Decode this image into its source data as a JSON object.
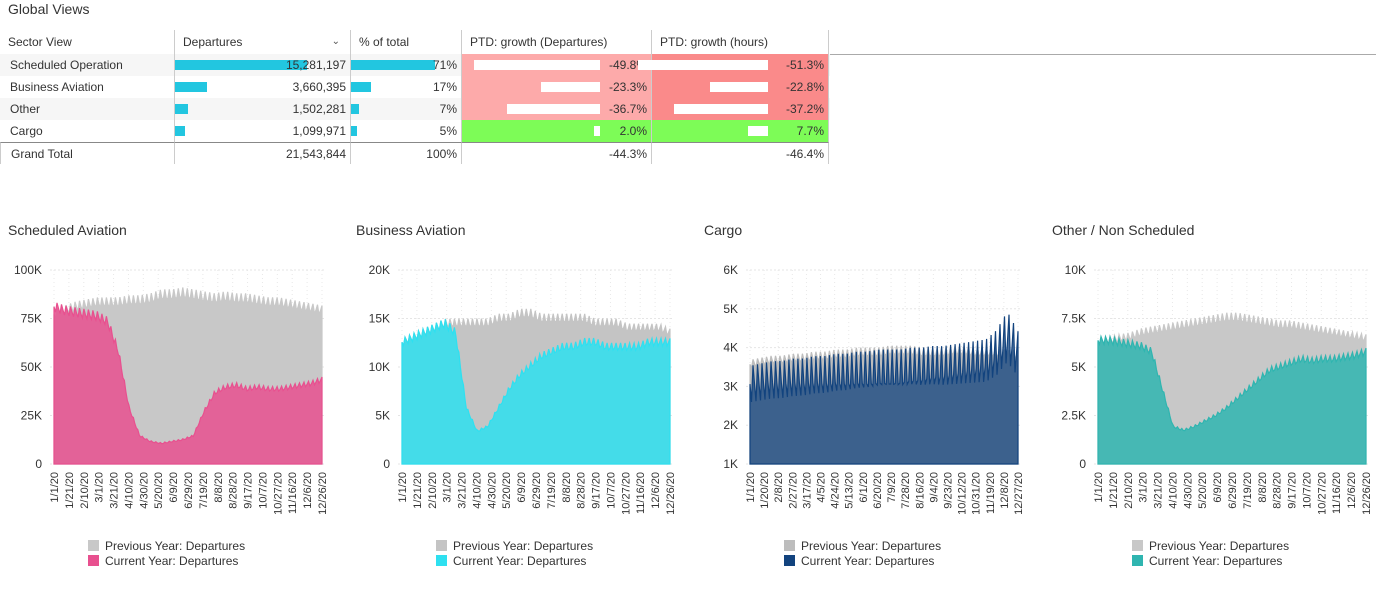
{
  "page": {
    "title": "Global Views"
  },
  "table": {
    "headers": {
      "sector": "Sector View",
      "departures": "Departures",
      "pct_total": "% of total",
      "ptd_dep": "PTD: growth (Departures)",
      "ptd_hours": "PTD: growth (hours)"
    },
    "rows": [
      {
        "sector": "Scheduled Operation",
        "departures": "15,281,197",
        "pct": "71%",
        "g_dep": "-49.8%",
        "g_hours": "-51.3%"
      },
      {
        "sector": "Business Aviation",
        "departures": "3,660,395",
        "pct": "17%",
        "g_dep": "-23.3%",
        "g_hours": "-22.8%"
      },
      {
        "sector": "Other",
        "departures": "1,502,281",
        "pct": "7%",
        "g_dep": "-36.7%",
        "g_hours": "-37.2%"
      },
      {
        "sector": "Cargo",
        "departures": "1,099,971",
        "pct": "5%",
        "g_dep": "2.0%",
        "g_hours": "7.7%"
      }
    ],
    "grand_total": {
      "sector": "Grand Total",
      "departures": "21,543,844",
      "pct": "100%",
      "g_dep": "-44.3%",
      "g_hours": "-46.4%"
    },
    "bar_values": {
      "departures": [
        15281197,
        3660395,
        1502281,
        1099971
      ],
      "pct": [
        0.71,
        0.17,
        0.07,
        0.05
      ],
      "g_dep": [
        -49.8,
        -23.3,
        -36.7,
        2.0
      ],
      "g_hours": [
        -51.3,
        -22.8,
        -37.2,
        7.7
      ]
    },
    "colors": {
      "bar": "#22c6e0",
      "neg_light": "#fba3a3",
      "neg_dark": "#f98080",
      "pos": "#7dfc57"
    }
  },
  "chart_data": [
    {
      "type": "area",
      "title": "Scheduled Aviation",
      "y_ticks": [
        "100K",
        "75K",
        "50K",
        "25K",
        "0"
      ],
      "ylim": [
        0,
        100000
      ],
      "x_ticks": [
        "1/1/20",
        "1/21/20",
        "2/10/20",
        "3/1/20",
        "3/21/20",
        "4/10/20",
        "4/30/20",
        "5/20/20",
        "6/9/20",
        "6/29/20",
        "7/19/20",
        "8/8/20",
        "8/28/20",
        "9/17/20",
        "10/7/20",
        "10/27/20",
        "11/16/20",
        "12/6/20",
        "12/26/20"
      ],
      "series": [
        {
          "name": "Previous Year: Departures",
          "color": "#c8c8c8",
          "values": [
            80000,
            82000,
            84000,
            85000,
            86000,
            86000,
            86000,
            87000,
            87000,
            88000,
            90000,
            90000,
            91000,
            90000,
            89000,
            88000,
            89000,
            88000,
            88000,
            87000,
            86000,
            86000,
            85000,
            84000,
            83000,
            82000
          ]
        },
        {
          "name": "Current Year: Departures",
          "color": "#e8508f",
          "values": [
            84000,
            82000,
            81000,
            80000,
            79000,
            76000,
            60000,
            30000,
            15000,
            12000,
            11000,
            12000,
            13000,
            15000,
            28000,
            38000,
            41000,
            42000,
            40000,
            41000,
            40000,
            40000,
            41000,
            42000,
            43000,
            45000
          ]
        }
      ]
    },
    {
      "type": "area",
      "title": "Business Aviation",
      "y_ticks": [
        "20K",
        "15K",
        "10K",
        "5K",
        "0"
      ],
      "ylim": [
        0,
        20000
      ],
      "x_ticks": [
        "1/1/20",
        "1/21/20",
        "2/10/20",
        "3/1/20",
        "3/21/20",
        "4/10/20",
        "4/30/20",
        "5/20/20",
        "6/9/20",
        "6/29/20",
        "7/19/20",
        "8/8/20",
        "8/28/20",
        "9/17/20",
        "10/7/20",
        "10/27/20",
        "11/16/20",
        "12/6/20",
        "12/26/20"
      ],
      "series": [
        {
          "name": "Previous Year: Departures",
          "color": "#c4c4c4",
          "values": [
            13000,
            13500,
            14000,
            14500,
            15000,
            15000,
            15000,
            15000,
            15000,
            15500,
            15500,
            16000,
            16000,
            15500,
            15500,
            15500,
            15500,
            15500,
            15000,
            15000,
            15000,
            14500,
            14500,
            14500,
            14500,
            14000
          ]
        },
        {
          "name": "Current Year: Departures",
          "color": "#2ee0f0",
          "values": [
            13000,
            13500,
            14000,
            14500,
            15000,
            14000,
            6000,
            3500,
            4000,
            6000,
            8000,
            9500,
            10500,
            11500,
            12000,
            12500,
            12500,
            13000,
            13000,
            12500,
            12500,
            12500,
            12500,
            13000,
            13000,
            13000
          ]
        }
      ]
    },
    {
      "type": "area",
      "title": "Cargo",
      "y_ticks": [
        "6K",
        "5K",
        "4K",
        "3K",
        "2K",
        "1K"
      ],
      "ylim": [
        1000,
        6000
      ],
      "x_ticks": [
        "1/1/20",
        "1/20/20",
        "2/8/20",
        "2/27/20",
        "3/17/20",
        "4/5/20",
        "4/24/20",
        "5/13/20",
        "6/1/20",
        "6/20/20",
        "7/9/20",
        "7/28/20",
        "8/16/20",
        "9/4/20",
        "9/23/20",
        "10/12/20",
        "10/31/20",
        "11/19/20",
        "12/8/20",
        "12/27/20"
      ],
      "series": [
        {
          "name": "Previous Year: Departures",
          "color": "#bdbdbd",
          "values": [
            3700,
            3750,
            3800,
            3800,
            3850,
            3850,
            3900,
            3900,
            3950,
            3950,
            4000,
            4000,
            4000,
            4050,
            4050,
            4050,
            4000,
            4000,
            4000,
            4050,
            4050,
            4000,
            4000,
            4000,
            3950,
            3950
          ]
        },
        {
          "name": "Current Year: Departures",
          "color": "#12437e",
          "values": [
            3600,
            3650,
            3700,
            3700,
            3750,
            3750,
            3800,
            3800,
            3850,
            3850,
            3900,
            3900,
            3950,
            3950,
            3950,
            4000,
            4000,
            4050,
            4050,
            4100,
            4150,
            4200,
            4250,
            4500,
            5000,
            4500
          ]
        }
      ]
    },
    {
      "type": "area",
      "title": "Other / Non Scheduled",
      "y_ticks": [
        "10K",
        "7.5K",
        "5K",
        "2.5K",
        "0"
      ],
      "ylim": [
        0,
        10000
      ],
      "x_ticks": [
        "1/1/20",
        "1/21/20",
        "2/10/20",
        "3/1/20",
        "3/21/20",
        "4/10/20",
        "4/30/20",
        "5/20/20",
        "6/9/20",
        "6/29/20",
        "7/19/20",
        "8/8/20",
        "8/28/20",
        "9/17/20",
        "10/7/20",
        "10/27/20",
        "11/16/20",
        "12/6/20",
        "12/26/20"
      ],
      "series": [
        {
          "name": "Previous Year: Departures",
          "color": "#c8c8c8",
          "values": [
            6500,
            6600,
            6700,
            6800,
            7000,
            7100,
            7200,
            7300,
            7400,
            7500,
            7600,
            7700,
            7800,
            7800,
            7700,
            7600,
            7500,
            7400,
            7400,
            7300,
            7200,
            7100,
            7000,
            6900,
            6800,
            6700
          ]
        },
        {
          "name": "Current Year: Departures",
          "color": "#2fb5b0",
          "values": [
            6600,
            6600,
            6500,
            6400,
            6300,
            6000,
            4000,
            2000,
            1800,
            2000,
            2300,
            2600,
            3000,
            3500,
            4000,
            4500,
            5000,
            5200,
            5400,
            5600,
            5500,
            5600,
            5600,
            5700,
            5800,
            6000
          ]
        }
      ]
    }
  ]
}
